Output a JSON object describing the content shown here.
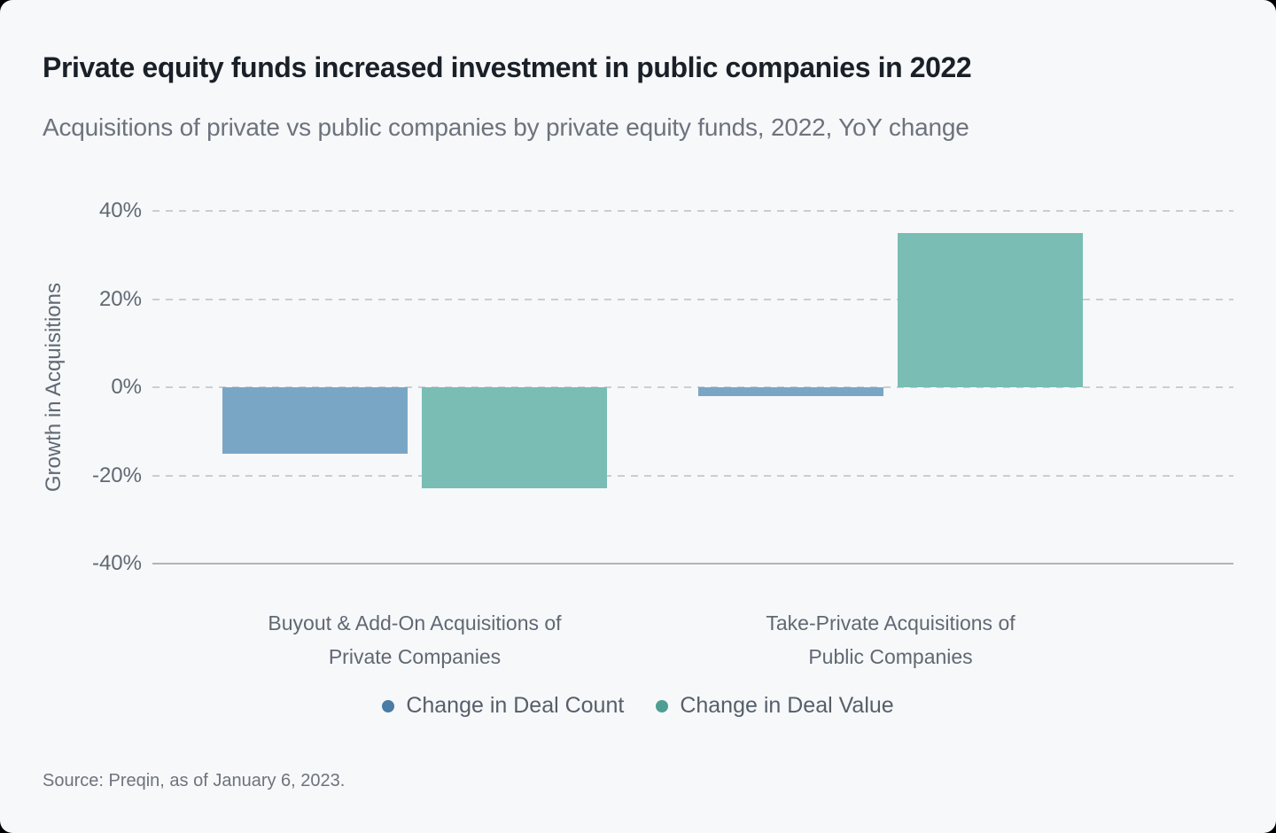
{
  "header": {
    "title": "Private equity funds increased investment in public companies in 2022",
    "subtitle": "Acquisitions of private vs public companies by private equity funds, 2022, YoY change"
  },
  "chart_data": {
    "type": "bar",
    "title": "Private equity funds increased investment in public companies in 2022",
    "subtitle": "Acquisitions of private vs public companies by private equity funds, 2022, YoY change",
    "ylabel": "Growth in Acquisitions",
    "xlabel": "",
    "ylim": [
      -40,
      40
    ],
    "grid": "horizontal-dashed",
    "legend_position": "bottom-center",
    "yticks": [
      {
        "value": 40,
        "label": "40%"
      },
      {
        "value": 20,
        "label": "20%"
      },
      {
        "value": 0,
        "label": "0%"
      },
      {
        "value": -20,
        "label": "-20%"
      },
      {
        "value": -40,
        "label": "-40%"
      }
    ],
    "categories": [
      "Buyout & Add-On Acquisitions of Private Companies",
      "Take-Private Acquisitions of Public Companies"
    ],
    "category_lines": [
      [
        "Buyout & Add-On Acquisitions of",
        "Private Companies"
      ],
      [
        "Take-Private Acquisitions of",
        "Public Companies"
      ]
    ],
    "series": [
      {
        "name": "Change in Deal Count",
        "bar_color": "#7aa6c6",
        "legend_color": "#4a7ca5",
        "values": [
          -15,
          -2
        ]
      },
      {
        "name": "Change in Deal Value",
        "bar_color": "#79bdb4",
        "legend_color": "#4d9f94",
        "values": [
          -23,
          35
        ]
      }
    ]
  },
  "footer": {
    "source": "Source: Preqin, as of January 6, 2023."
  },
  "colors": {
    "background": "#f7f8fa",
    "title": "#1a2028",
    "subtitle": "#6d737d",
    "axis_text": "#5f6973",
    "gridline": "#c9ced4",
    "axis_line": "#aeb5bc"
  }
}
